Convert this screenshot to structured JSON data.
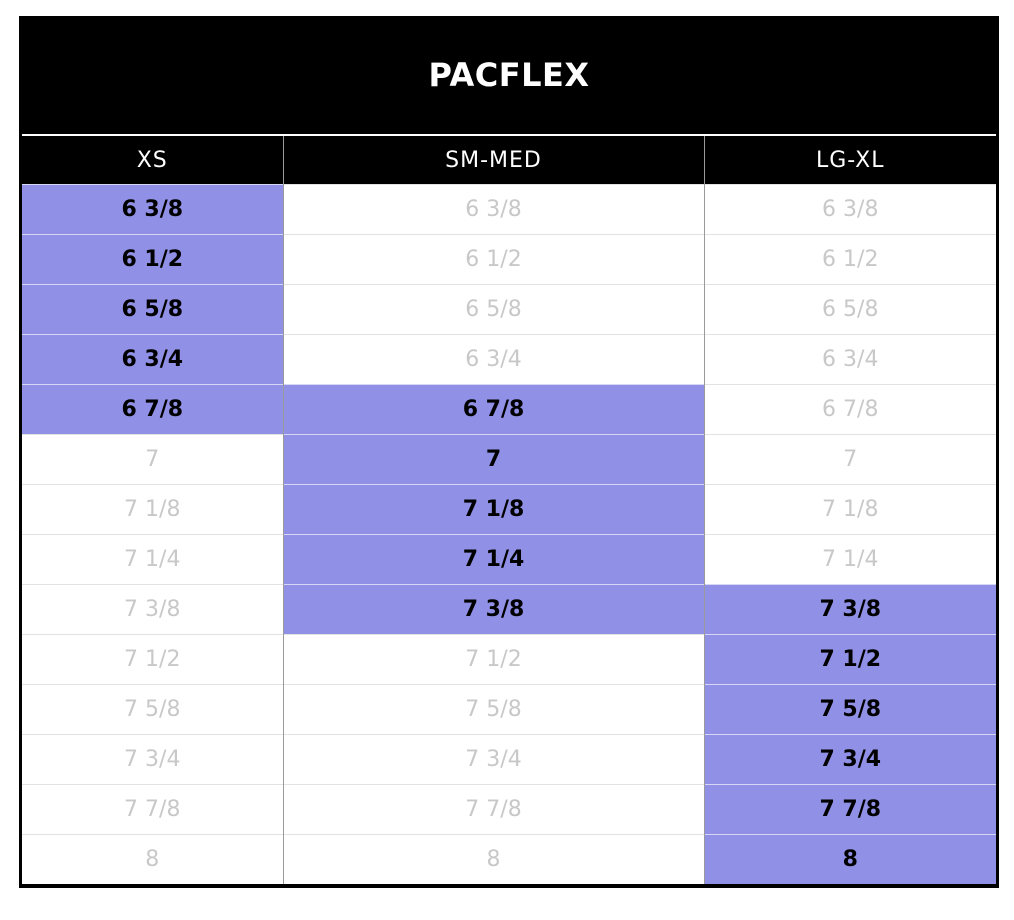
{
  "title": "PACFLEX",
  "columns": [
    "XS",
    "SM-MED",
    "LG-XL"
  ],
  "highlight_color": "#9090e6",
  "rows": [
    {
      "cells": [
        {
          "text": "6 3/8",
          "on": true
        },
        {
          "text": "6 3/8",
          "on": false
        },
        {
          "text": "6 3/8",
          "on": false
        }
      ]
    },
    {
      "cells": [
        {
          "text": "6 1/2",
          "on": true
        },
        {
          "text": "6 1/2",
          "on": false
        },
        {
          "text": "6 1/2",
          "on": false
        }
      ]
    },
    {
      "cells": [
        {
          "text": "6 5/8",
          "on": true
        },
        {
          "text": "6 5/8",
          "on": false
        },
        {
          "text": "6 5/8",
          "on": false
        }
      ]
    },
    {
      "cells": [
        {
          "text": "6 3/4",
          "on": true
        },
        {
          "text": "6 3/4",
          "on": false
        },
        {
          "text": "6 3/4",
          "on": false
        }
      ]
    },
    {
      "cells": [
        {
          "text": "6 7/8",
          "on": true
        },
        {
          "text": "6 7/8",
          "on": true
        },
        {
          "text": "6 7/8",
          "on": false
        }
      ]
    },
    {
      "cells": [
        {
          "text": "7",
          "on": false
        },
        {
          "text": "7",
          "on": true
        },
        {
          "text": "7",
          "on": false
        }
      ]
    },
    {
      "cells": [
        {
          "text": "7 1/8",
          "on": false
        },
        {
          "text": "7 1/8",
          "on": true
        },
        {
          "text": "7 1/8",
          "on": false
        }
      ]
    },
    {
      "cells": [
        {
          "text": "7 1/4",
          "on": false
        },
        {
          "text": "7 1/4",
          "on": true
        },
        {
          "text": "7 1/4",
          "on": false
        }
      ]
    },
    {
      "cells": [
        {
          "text": "7 3/8",
          "on": false
        },
        {
          "text": "7 3/8",
          "on": true
        },
        {
          "text": "7 3/8",
          "on": true
        }
      ]
    },
    {
      "cells": [
        {
          "text": "7 1/2",
          "on": false
        },
        {
          "text": "7 1/2",
          "on": false
        },
        {
          "text": "7 1/2",
          "on": true
        }
      ]
    },
    {
      "cells": [
        {
          "text": "7 5/8",
          "on": false
        },
        {
          "text": "7 5/8",
          "on": false
        },
        {
          "text": "7 5/8",
          "on": true
        }
      ]
    },
    {
      "cells": [
        {
          "text": "7 3/4",
          "on": false
        },
        {
          "text": "7 3/4",
          "on": false
        },
        {
          "text": "7 3/4",
          "on": true
        }
      ]
    },
    {
      "cells": [
        {
          "text": "7 7/8",
          "on": false
        },
        {
          "text": "7 7/8",
          "on": false
        },
        {
          "text": "7 7/8",
          "on": true
        }
      ]
    },
    {
      "cells": [
        {
          "text": "8",
          "on": false
        },
        {
          "text": "8",
          "on": false
        },
        {
          "text": "8",
          "on": true
        }
      ]
    }
  ]
}
